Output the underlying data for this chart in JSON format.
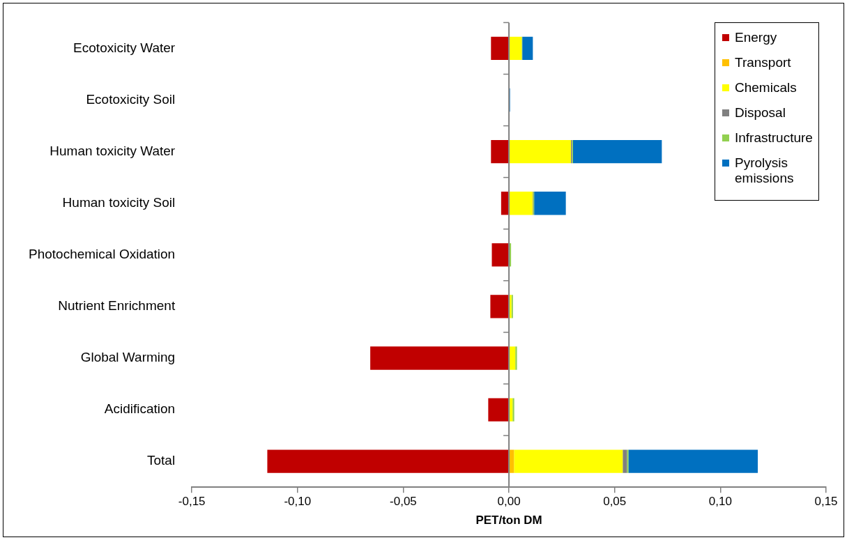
{
  "chart_data": {
    "type": "bar",
    "orientation": "horizontal",
    "stacked": true,
    "xlabel": "PET/ton DM",
    "categories": [
      "Ecotoxicity Water",
      "Ecotoxicity Soil",
      "Human toxicity Water",
      "Human toxicity Soil",
      "Photochemical Oxidation",
      "Nutrient Enrichment",
      "Global Warming",
      "Acidification",
      "Total"
    ],
    "series": [
      {
        "name": "Energy",
        "color": "#c00000",
        "values": [
          -0.0085,
          0,
          -0.0085,
          -0.0037,
          -0.0081,
          -0.0088,
          -0.0656,
          -0.0098,
          -0.1143
        ]
      },
      {
        "name": "Transport",
        "color": "#ffc000",
        "values": [
          0.0003,
          0,
          0.0003,
          0.0002,
          0,
          0,
          0,
          0,
          0.0024
        ]
      },
      {
        "name": "Chemicals",
        "color": "#ffff00",
        "values": [
          0.0057,
          0,
          0.029,
          0.011,
          0.0003,
          0.0012,
          0.003,
          0.0017,
          0.0514
        ]
      },
      {
        "name": "Disposal",
        "color": "#808080",
        "values": [
          null,
          0,
          0.0005,
          0.0002,
          0,
          0,
          0,
          0,
          0.002
        ]
      },
      {
        "name": "Infrastructure",
        "color": "#92d050",
        "values": [
          0.0003,
          0.0003,
          0.0005,
          0.0005,
          0.0007,
          0.0007,
          0.0008,
          0.0008,
          0.0007
        ]
      },
      {
        "name": "Pyrolysis emissions",
        "color": "#0070c0",
        "values": [
          0.005,
          0.0002,
          0.042,
          0.015,
          0,
          0,
          0,
          0,
          0.0612
        ]
      }
    ],
    "xlim": [
      -0.15,
      0.15
    ],
    "xticks": [
      {
        "value": -0.15,
        "label": "-0,15"
      },
      {
        "value": -0.1,
        "label": "-0,10"
      },
      {
        "value": -0.05,
        "label": "-0,05"
      },
      {
        "value": 0,
        "label": "0,00"
      },
      {
        "value": 0.05,
        "label": "0,05"
      },
      {
        "value": 0.1,
        "label": "0,10"
      },
      {
        "value": 0.15,
        "label": "0,15"
      }
    ],
    "ref_lines": [
      {
        "axis": "x",
        "value": 0,
        "color": "#808080",
        "line_style": "solid"
      }
    ],
    "grid": false,
    "legend": "top right"
  }
}
